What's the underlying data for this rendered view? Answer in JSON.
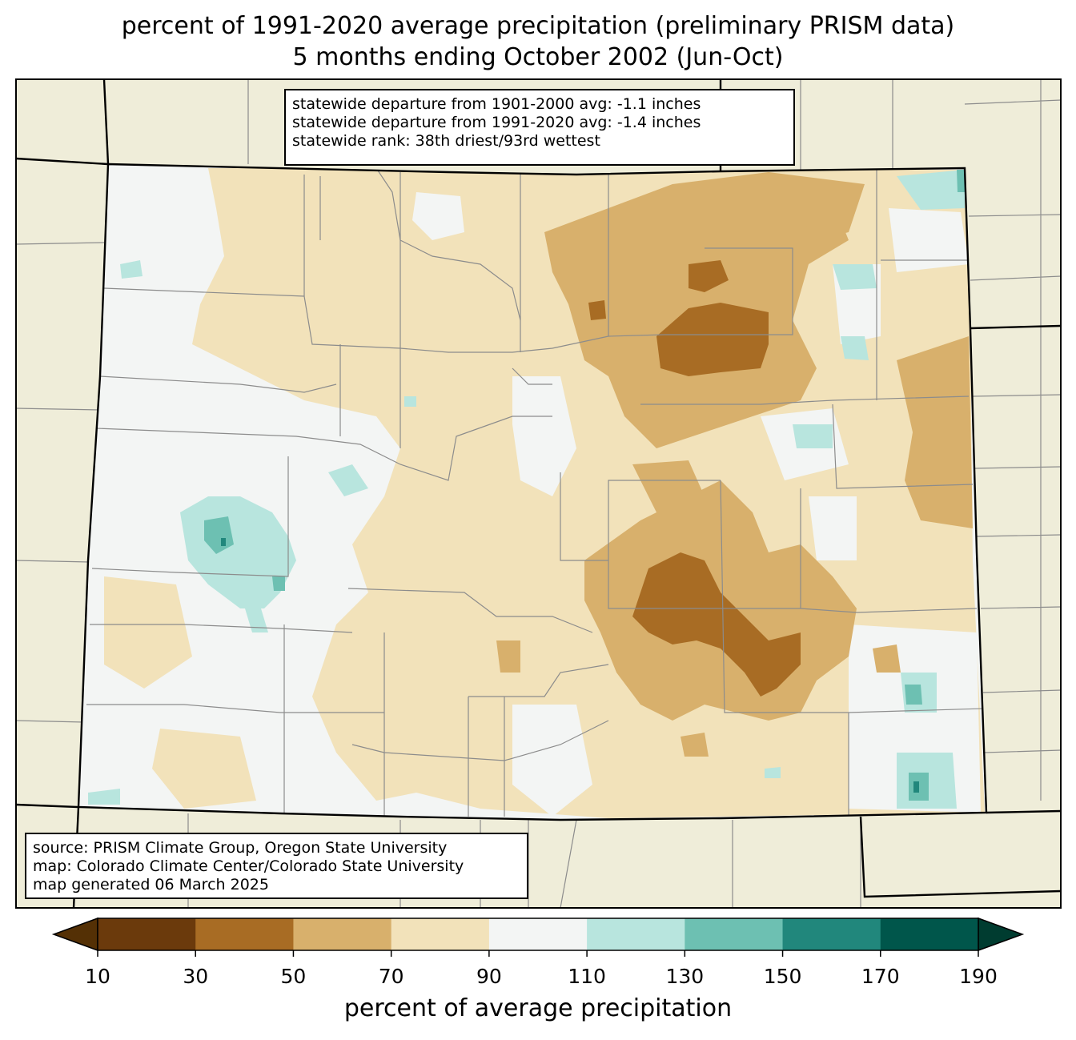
{
  "title_line1": "percent of 1991-2020 average precipitation (preliminary PRISM data)",
  "title_line2": "5 months ending October 2002 (Jun-Oct)",
  "stats": {
    "line1": "statewide departure from 1901-2000 avg: -1.1 inches",
    "line2": "statewide departure from 1991-2020 avg: -1.4 inches",
    "line3": "statewide rank: 38th driest/93rd wettest"
  },
  "credits": {
    "line1": "source: PRISM Climate Group, Oregon State University",
    "line2": "map: Colorado Climate Center/Colorado State University",
    "line3": "map generated 06 March 2025"
  },
  "colorbar": {
    "label": "percent of average precipitation",
    "ticks": [
      "10",
      "30",
      "50",
      "70",
      "90",
      "110",
      "130",
      "150",
      "170",
      "190"
    ],
    "colors": [
      "#6b3a0c",
      "#a86c24",
      "#d8b06c",
      "#f2e2ba",
      "#f3f5f4",
      "#b8e5de",
      "#6dc0b2",
      "#21877c",
      "#00564b"
    ],
    "under_color": "#543005",
    "over_color": "#003c30"
  },
  "background_color": "#efedd9"
}
